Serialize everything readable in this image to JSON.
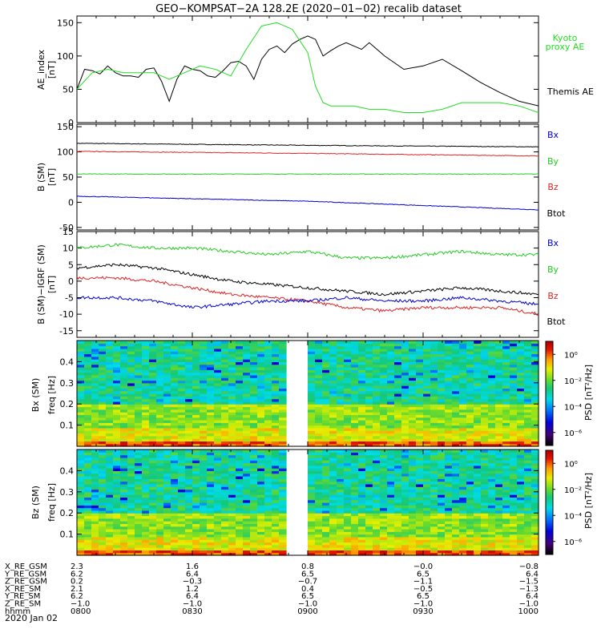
{
  "figure": {
    "title": "GEO−KOMPSAT−2A 128.2E (2020−01−02) recalib dataset"
  },
  "panels": {
    "ae": {
      "ylabel": "AE_index",
      "unit": "[nT]",
      "legend": [
        {
          "text": "Kyoto",
          "color": "#22dd22"
        },
        {
          "text": "proxy AE",
          "color": "#22dd22"
        },
        {
          "text": "Themis AE",
          "color": "#000000"
        }
      ]
    },
    "b": {
      "ylabel": "B (SM)",
      "unit": "[nT]",
      "legend": [
        {
          "text": "Bx",
          "color": "#0000cc"
        },
        {
          "text": "By",
          "color": "#22cc22"
        },
        {
          "text": "Bz",
          "color": "#dd2222"
        },
        {
          "text": "Btot",
          "color": "#000000"
        }
      ]
    },
    "db": {
      "ylabel": "B (SM)−IGRF (SM)",
      "unit": "[nT]",
      "legend": [
        {
          "text": "Bx",
          "color": "#0000cc"
        },
        {
          "text": "By",
          "color": "#22cc22"
        },
        {
          "text": "Bz",
          "color": "#dd2222"
        },
        {
          "text": "Btot",
          "color": "#000000"
        }
      ]
    },
    "spec_bx": {
      "ylabel": "Bx (SM)",
      "freq_label": "freq [Hz]",
      "colorbar_label": "PSD [nT²/Hz]",
      "colorbar_ticks": [
        "10⁰",
        "10⁻²",
        "10⁻⁴",
        "10⁻⁶"
      ]
    },
    "spec_bz": {
      "ylabel": "Bz (SM)",
      "freq_label": "freq [Hz]",
      "colorbar_label": "PSD [nT²/Hz]",
      "colorbar_ticks": [
        "10⁰",
        "10⁻²",
        "10⁻⁴",
        "10⁻⁶"
      ]
    }
  },
  "ephemeris": {
    "rows": [
      {
        "label": "X_RE_GSM",
        "values": [
          "2.3",
          "1.6",
          "0.8",
          "−0.0",
          "−0.8"
        ]
      },
      {
        "label": "Y_RE_GSM",
        "values": [
          "6.2",
          "6.4",
          "6.5",
          "6.5",
          "6.4"
        ]
      },
      {
        "label": "Z_RE_GSM",
        "values": [
          "0.2",
          "−0.3",
          "−0.7",
          "−1.1",
          "−1.5"
        ]
      },
      {
        "label": "X_RE_SM",
        "values": [
          "2.1",
          "1.2",
          "0.4",
          "−0.5",
          "−1.3"
        ]
      },
      {
        "label": "Y_RE_SM",
        "values": [
          "6.2",
          "6.4",
          "6.5",
          "6.5",
          "6.4"
        ]
      },
      {
        "label": "Z_RE_SM",
        "values": [
          "−1.0",
          "−1.0",
          "−1.0",
          "−1.0",
          "−1.0"
        ]
      },
      {
        "label": "hhmm",
        "values": [
          "0800",
          "0830",
          "0900",
          "0930",
          "1000"
        ]
      }
    ],
    "date": "2020 Jan 02"
  },
  "chart_data": [
    {
      "type": "line",
      "panel": "ae",
      "ylabel": "AE_index [nT]",
      "ylim": [
        0,
        160
      ],
      "yticks": [
        0,
        50,
        100,
        150
      ],
      "xlim": [
        "08:00",
        "10:00"
      ],
      "series": [
        {
          "name": "Themis AE",
          "color": "#000000",
          "x": [
            "08:00",
            "08:02",
            "08:04",
            "08:06",
            "08:08",
            "08:10",
            "08:12",
            "08:14",
            "08:16",
            "08:18",
            "08:20",
            "08:22",
            "08:24",
            "08:26",
            "08:28",
            "08:30",
            "08:32",
            "08:34",
            "08:36",
            "08:38",
            "08:40",
            "08:42",
            "08:44",
            "08:46",
            "08:48",
            "08:50",
            "08:52",
            "08:54",
            "08:56",
            "08:58",
            "09:00",
            "09:02",
            "09:04",
            "09:06",
            "09:08",
            "09:10",
            "09:12",
            "09:14",
            "09:16",
            "09:20",
            "09:25",
            "09:30",
            "09:35",
            "09:40",
            "09:45",
            "09:50",
            "09:55",
            "10:00"
          ],
          "values": [
            50,
            80,
            78,
            73,
            85,
            75,
            70,
            70,
            68,
            80,
            82,
            62,
            32,
            65,
            85,
            80,
            78,
            70,
            68,
            78,
            90,
            92,
            85,
            65,
            95,
            110,
            115,
            105,
            118,
            125,
            130,
            125,
            100,
            108,
            115,
            120,
            115,
            110,
            120,
            100,
            80,
            85,
            95,
            78,
            60,
            45,
            32,
            25
          ]
        },
        {
          "name": "Kyoto proxy AE",
          "color": "#22dd22",
          "x": [
            "08:00",
            "08:04",
            "08:08",
            "08:12",
            "08:16",
            "08:20",
            "08:24",
            "08:28",
            "08:32",
            "08:36",
            "08:40",
            "08:44",
            "08:48",
            "08:52",
            "08:56",
            "09:00",
            "09:02",
            "09:04",
            "09:06",
            "09:08",
            "09:12",
            "09:16",
            "09:20",
            "09:25",
            "09:30",
            "09:35",
            "09:40",
            "09:45",
            "09:50",
            "09:55",
            "10:00"
          ],
          "values": [
            50,
            75,
            80,
            75,
            75,
            75,
            65,
            75,
            85,
            80,
            70,
            110,
            145,
            150,
            140,
            105,
            55,
            30,
            25,
            25,
            25,
            20,
            20,
            15,
            15,
            20,
            30,
            30,
            30,
            25,
            15
          ]
        }
      ]
    },
    {
      "type": "line",
      "panel": "b",
      "ylabel": "B (SM) [nT]",
      "ylim": [
        -55,
        155
      ],
      "yticks": [
        -50,
        0,
        50,
        100,
        150
      ],
      "xlim": [
        "08:00",
        "10:00"
      ],
      "series": [
        {
          "name": "Btot",
          "color": "#000000",
          "x": [
            "08:00",
            "09:00",
            "10:00"
          ],
          "values": [
            117,
            113,
            110
          ]
        },
        {
          "name": "Bz",
          "color": "#dd2222",
          "x": [
            "08:00",
            "09:00",
            "10:00"
          ],
          "values": [
            101,
            97,
            92
          ]
        },
        {
          "name": "By",
          "color": "#22cc22",
          "x": [
            "08:00",
            "09:00",
            "10:00"
          ],
          "values": [
            56,
            56,
            56
          ]
        },
        {
          "name": "Bx",
          "color": "#0000cc",
          "x": [
            "08:00",
            "09:00",
            "10:00"
          ],
          "values": [
            12,
            2,
            -15
          ]
        }
      ]
    },
    {
      "type": "line",
      "panel": "db",
      "ylabel": "B (SM)−IGRF (SM) [nT]",
      "ylim": [
        -17,
        15
      ],
      "yticks": [
        -15,
        -10,
        -5,
        0,
        5,
        10,
        15
      ],
      "xlim": [
        "08:00",
        "10:00"
      ],
      "series": [
        {
          "name": "By",
          "color": "#22cc22",
          "x": [
            "08:00",
            "08:10",
            "08:20",
            "08:30",
            "08:40",
            "08:50",
            "09:00",
            "09:10",
            "09:20",
            "09:30",
            "09:40",
            "09:50",
            "10:00"
          ],
          "values": [
            10,
            11,
            10,
            10,
            9,
            8,
            9,
            7,
            7,
            8,
            9,
            8,
            8
          ]
        },
        {
          "name": "Btot",
          "color": "#000000",
          "x": [
            "08:00",
            "08:10",
            "08:20",
            "08:30",
            "08:40",
            "08:50",
            "09:00",
            "09:10",
            "09:20",
            "09:30",
            "09:40",
            "09:50",
            "10:00"
          ],
          "values": [
            4,
            5,
            4,
            2,
            0,
            -1,
            -2,
            -3,
            -4,
            -3,
            -2,
            -3,
            -4
          ]
        },
        {
          "name": "Bz",
          "color": "#dd2222",
          "x": [
            "08:00",
            "08:10",
            "08:20",
            "08:30",
            "08:40",
            "08:50",
            "09:00",
            "09:10",
            "09:20",
            "09:30",
            "09:40",
            "09:50",
            "10:00"
          ],
          "values": [
            1,
            1,
            0,
            -2,
            -4,
            -5,
            -6,
            -8,
            -9,
            -8,
            -8,
            -8,
            -10
          ]
        },
        {
          "name": "Bx",
          "color": "#0000cc",
          "x": [
            "08:00",
            "08:10",
            "08:20",
            "08:30",
            "08:40",
            "08:50",
            "09:00",
            "09:10",
            "09:20",
            "09:30",
            "09:40",
            "09:50",
            "10:00"
          ],
          "values": [
            -5,
            -5,
            -6,
            -8,
            -7,
            -6,
            -6,
            -5,
            -6,
            -6,
            -5,
            -6,
            -7
          ]
        }
      ]
    },
    {
      "type": "heatmap",
      "panel": "spec_bx",
      "ylabel": "Bx (SM) freq [Hz]",
      "ylim": [
        0.0,
        0.5
      ],
      "yticks": [
        0.1,
        0.2,
        0.3,
        0.4
      ],
      "xlim": [
        "08:00",
        "10:00"
      ],
      "data_gap": [
        "08:56",
        "09:00"
      ],
      "colorbar": {
        "label": "PSD [nT²/Hz]",
        "log_range": [
          -7,
          1
        ]
      }
    },
    {
      "type": "heatmap",
      "panel": "spec_bz",
      "ylabel": "Bz (SM) freq [Hz]",
      "ylim": [
        0.0,
        0.5
      ],
      "yticks": [
        0.1,
        0.2,
        0.3,
        0.4
      ],
      "xlim": [
        "08:00",
        "10:00"
      ],
      "data_gap": [
        "08:56",
        "09:00"
      ],
      "colorbar": {
        "label": "PSD [nT²/Hz]",
        "log_range": [
          -7,
          1
        ]
      }
    }
  ]
}
